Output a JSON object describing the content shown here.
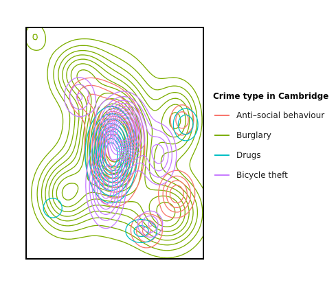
{
  "chart_data": {
    "type": "contour",
    "title": "",
    "xlabel": "",
    "ylabel": "",
    "grid": false,
    "legend_placement": "right",
    "legend_title": "Crime type in Cambridge",
    "series": [
      {
        "name": "Anti–social behaviour",
        "color": "#F8766D",
        "levels": 10,
        "components": [
          {
            "x": 0.5,
            "y": 0.52,
            "sx": 0.08,
            "sy": 0.12,
            "w": 1.0
          },
          {
            "x": 0.85,
            "y": 0.72,
            "sx": 0.06,
            "sy": 0.06,
            "w": 0.45
          },
          {
            "x": 0.68,
            "y": 0.88,
            "sx": 0.06,
            "sy": 0.05,
            "w": 0.3
          },
          {
            "x": 0.35,
            "y": 0.3,
            "sx": 0.08,
            "sy": 0.06,
            "w": 0.25
          },
          {
            "x": 0.88,
            "y": 0.4,
            "sx": 0.05,
            "sy": 0.05,
            "w": 0.25
          }
        ]
      },
      {
        "name": "Burglary",
        "color": "#7CAE00",
        "levels": 14,
        "components": [
          {
            "x": 0.5,
            "y": 0.5,
            "sx": 0.13,
            "sy": 0.18,
            "w": 1.0
          },
          {
            "x": 0.8,
            "y": 0.8,
            "sx": 0.12,
            "sy": 0.1,
            "w": 0.55
          },
          {
            "x": 0.22,
            "y": 0.72,
            "sx": 0.1,
            "sy": 0.1,
            "w": 0.5
          },
          {
            "x": 0.85,
            "y": 0.4,
            "sx": 0.08,
            "sy": 0.1,
            "w": 0.4
          },
          {
            "x": 0.3,
            "y": 0.2,
            "sx": 0.1,
            "sy": 0.08,
            "w": 0.4
          },
          {
            "x": 0.05,
            "y": 0.04,
            "sx": 0.05,
            "sy": 0.05,
            "w": 0.15
          }
        ]
      },
      {
        "name": "Drugs",
        "color": "#00BFC4",
        "levels": 9,
        "components": [
          {
            "x": 0.48,
            "y": 0.55,
            "sx": 0.07,
            "sy": 0.1,
            "w": 1.0
          },
          {
            "x": 0.9,
            "y": 0.42,
            "sx": 0.05,
            "sy": 0.05,
            "w": 0.3
          },
          {
            "x": 0.65,
            "y": 0.88,
            "sx": 0.07,
            "sy": 0.04,
            "w": 0.25
          },
          {
            "x": 0.15,
            "y": 0.78,
            "sx": 0.05,
            "sy": 0.04,
            "w": 0.2
          }
        ]
      },
      {
        "name": "Bicycle theft",
        "color": "#C77CFF",
        "levels": 12,
        "components": [
          {
            "x": 0.55,
            "y": 0.45,
            "sx": 0.07,
            "sy": 0.08,
            "w": 1.0
          },
          {
            "x": 0.45,
            "y": 0.68,
            "sx": 0.06,
            "sy": 0.1,
            "w": 0.55
          },
          {
            "x": 0.75,
            "y": 0.55,
            "sx": 0.06,
            "sy": 0.08,
            "w": 0.35
          },
          {
            "x": 0.3,
            "y": 0.3,
            "sx": 0.06,
            "sy": 0.06,
            "w": 0.25
          },
          {
            "x": 0.7,
            "y": 0.85,
            "sx": 0.05,
            "sy": 0.04,
            "w": 0.25
          }
        ]
      }
    ]
  }
}
